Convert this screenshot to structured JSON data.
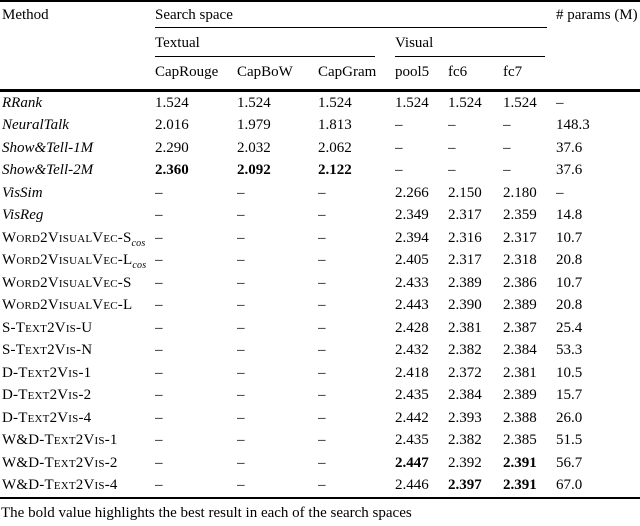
{
  "table": {
    "headers": {
      "method": "Method",
      "search_space": "Search space",
      "params": "# params (M)",
      "textual": "Textual",
      "visual": "Visual",
      "columns": [
        "CapRouge",
        "CapBoW",
        "CapGram",
        "pool5",
        "fc6",
        "fc7"
      ]
    },
    "rows": [
      {
        "method": "RRank",
        "style": "italic",
        "sub": "",
        "values": [
          "1.524",
          "1.524",
          "1.524",
          "1.524",
          "1.524",
          "1.524",
          "–"
        ],
        "bold": []
      },
      {
        "method": "NeuralTalk",
        "style": "italic",
        "sub": "",
        "values": [
          "2.016",
          "1.979",
          "1.813",
          "–",
          "–",
          "–",
          "148.3"
        ],
        "bold": []
      },
      {
        "method": "Show&Tell-1M",
        "style": "italic",
        "sub": "",
        "values": [
          "2.290",
          "2.032",
          "2.062",
          "–",
          "–",
          "–",
          "37.6"
        ],
        "bold": []
      },
      {
        "method": "Show&Tell-2M",
        "style": "italic",
        "sub": "",
        "values": [
          "2.360",
          "2.092",
          "2.122",
          "–",
          "–",
          "–",
          "37.6"
        ],
        "bold": [
          0,
          1,
          2
        ]
      },
      {
        "method": "VisSim",
        "style": "italic",
        "sub": "",
        "values": [
          "–",
          "–",
          "–",
          "2.266",
          "2.150",
          "2.180",
          "–"
        ],
        "bold": []
      },
      {
        "method": "VisReg",
        "style": "italic",
        "sub": "",
        "values": [
          "–",
          "–",
          "–",
          "2.349",
          "2.317",
          "2.359",
          "14.8"
        ],
        "bold": []
      },
      {
        "method": "Word2VisualVec-S",
        "style": "smallcaps",
        "sub": "cos",
        "values": [
          "–",
          "–",
          "–",
          "2.394",
          "2.316",
          "2.317",
          "10.7"
        ],
        "bold": []
      },
      {
        "method": "Word2VisualVec-L",
        "style": "smallcaps",
        "sub": "cos",
        "values": [
          "–",
          "–",
          "–",
          "2.405",
          "2.317",
          "2.318",
          "20.8"
        ],
        "bold": []
      },
      {
        "method": "Word2VisualVec-S",
        "style": "smallcaps",
        "sub": "",
        "values": [
          "–",
          "–",
          "–",
          "2.433",
          "2.389",
          "2.386",
          "10.7"
        ],
        "bold": []
      },
      {
        "method": "Word2VisualVec-L",
        "style": "smallcaps",
        "sub": "",
        "values": [
          "–",
          "–",
          "–",
          "2.443",
          "2.390",
          "2.389",
          "20.8"
        ],
        "bold": []
      },
      {
        "method": "S-Text2Vis-U",
        "style": "smallcaps",
        "sub": "",
        "values": [
          "–",
          "–",
          "–",
          "2.428",
          "2.381",
          "2.387",
          "25.4"
        ],
        "bold": []
      },
      {
        "method": "S-Text2Vis-N",
        "style": "smallcaps",
        "sub": "",
        "values": [
          "–",
          "–",
          "–",
          "2.432",
          "2.382",
          "2.384",
          "53.3"
        ],
        "bold": []
      },
      {
        "method": "D-Text2Vis-1",
        "style": "smallcaps",
        "sub": "",
        "values": [
          "–",
          "–",
          "–",
          "2.418",
          "2.372",
          "2.381",
          "10.5"
        ],
        "bold": []
      },
      {
        "method": "D-Text2Vis-2",
        "style": "smallcaps",
        "sub": "",
        "values": [
          "–",
          "–",
          "–",
          "2.435",
          "2.384",
          "2.389",
          "15.7"
        ],
        "bold": []
      },
      {
        "method": "D-Text2Vis-4",
        "style": "smallcaps",
        "sub": "",
        "values": [
          "–",
          "–",
          "–",
          "2.442",
          "2.393",
          "2.388",
          "26.0"
        ],
        "bold": []
      },
      {
        "method": "W&D-Text2Vis-1",
        "style": "smallcaps",
        "sub": "",
        "values": [
          "–",
          "–",
          "–",
          "2.435",
          "2.382",
          "2.385",
          "51.5"
        ],
        "bold": []
      },
      {
        "method": "W&D-Text2Vis-2",
        "style": "smallcaps",
        "sub": "",
        "values": [
          "–",
          "–",
          "–",
          "2.447",
          "2.392",
          "2.391",
          "56.7"
        ],
        "bold": [
          3,
          5
        ]
      },
      {
        "method": "W&D-Text2Vis-4",
        "style": "smallcaps",
        "sub": "",
        "values": [
          "–",
          "–",
          "–",
          "2.446",
          "2.397",
          "2.391",
          "67.0"
        ],
        "bold": [
          4,
          5
        ]
      }
    ],
    "footnote": "The bold value highlights the best result in each of the search spaces"
  },
  "colors": {
    "text": "#000000",
    "background": "#ffffff",
    "rule": "#000000"
  }
}
